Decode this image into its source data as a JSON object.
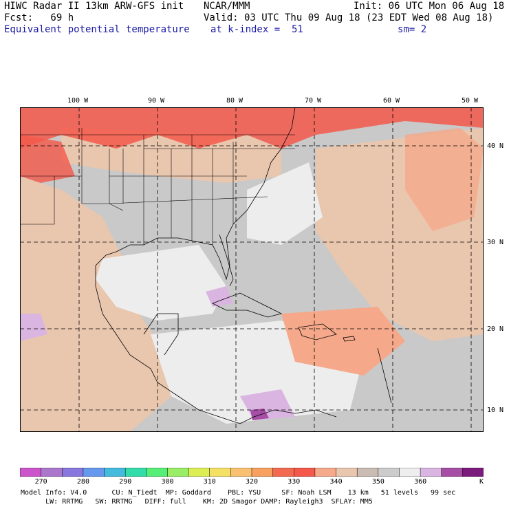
{
  "header": {
    "title": "HIWC Radar II 13km ARW-GFS init",
    "source": "NCAR/MMM",
    "init": "Init: 06 UTC Mon 06 Aug 18",
    "fcst": "Fcst:   69 h",
    "valid": "Valid: 03 UTC Thu 09 Aug 18 (23 EDT Wed 08 Aug 18)",
    "field": "Equivalent potential temperature",
    "level": "at k-index =  51",
    "smooth": "sm= 2"
  },
  "map": {
    "lon_labels": [
      "100 W",
      "90 W",
      "80 W",
      "70 W",
      "60 W",
      "50 W"
    ],
    "lat_labels": [
      "40 N",
      "30 N",
      "20 N",
      "10 N"
    ],
    "colors": {
      "land_gray": "#c9c9c9",
      "ocean_light": "#ededed",
      "tan": "#e9c6ae",
      "salmon": "#f5a98a",
      "red": "#f4584a",
      "lavender": "#dab5e1"
    }
  },
  "colorbar": {
    "ticks": [
      "270",
      "280",
      "290",
      "300",
      "310",
      "320",
      "330",
      "340",
      "350",
      "360"
    ],
    "unit": "K",
    "colors": [
      "#cc55cc",
      "#aa77cc",
      "#8877dd",
      "#6699ee",
      "#44bbdd",
      "#33ddaa",
      "#55ee77",
      "#99ee66",
      "#ddee55",
      "#f5e066",
      "#f8c070",
      "#f7a060",
      "#f46a50",
      "#f4584a",
      "#f5a98a",
      "#e9c6ae",
      "#cbbcb3",
      "#cccccc",
      "#eeeeee",
      "#dab5e1",
      "#a64da6",
      "#7a1a7a"
    ]
  },
  "footer": {
    "line1": "Model Info: V4.0      CU: N_Tiedt  MP: Goddard    PBL: YSU     SF: Noah LSM    13 km   51 levels   99 sec",
    "line2": "      LW: RRTMG   SW: RRTMG   DIFF: full    KM: 2D Smagor DAMP: Rayleigh3  SFLAY: MM5"
  }
}
